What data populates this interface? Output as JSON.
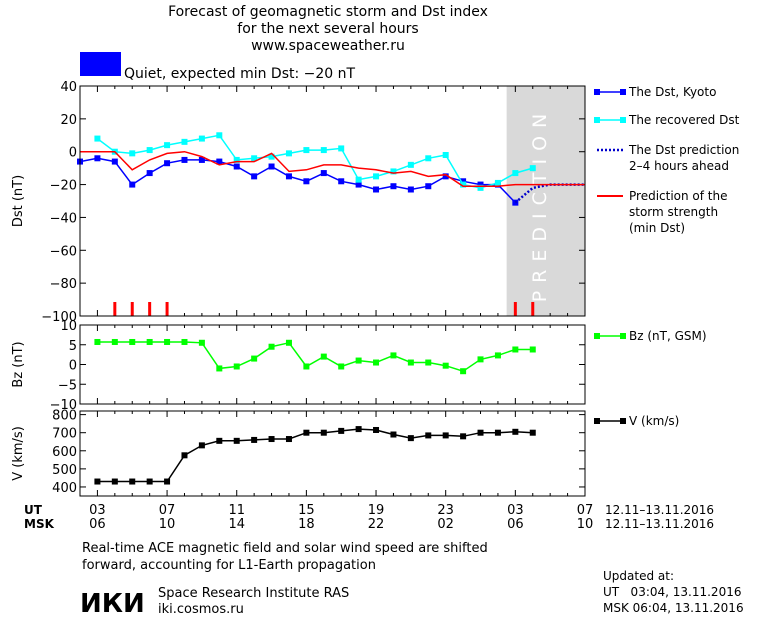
{
  "header": {
    "line1": "Forecast of geomagnetic storm and Dst index",
    "line2": "for the next several hours",
    "line3": "www.spaceweather.ru"
  },
  "status": {
    "color": "#0000ff",
    "text": "Quiet, expected min Dst: −20 nT"
  },
  "x_ticks": {
    "ut": [
      "03",
      "07",
      "11",
      "15",
      "19",
      "23",
      "03",
      "07"
    ],
    "msk": [
      "06",
      "10",
      "14",
      "18",
      "22",
      "02",
      "06",
      "10"
    ],
    "row_ut": "UT",
    "row_msk": "MSK",
    "range_ut": "12.11–13.11.2016",
    "range_msk": "12.11–13.11.2016"
  },
  "prediction_label": "PREDICTION",
  "footer": {
    "note_line1": "Real-time ACE magnetic field and solar wind speed are shifted",
    "note_line2": "forward, accounting for L1-Earth propagation",
    "org_logo": "ИКИ",
    "org_name": "Space Research Institute RAS",
    "org_url": "iki.cosmos.ru",
    "updated_label": "Updated at:",
    "updated_ut": "UT   03:04, 13.11.2016",
    "updated_msk": "MSK 06:04, 13.11.2016"
  },
  "chart_data": [
    {
      "type": "line",
      "ylabel": "Dst (nT)",
      "ylim": [
        -100,
        40
      ],
      "yticks": [
        40,
        20,
        0,
        -20,
        -40,
        -60,
        -80,
        -100
      ],
      "xlim": [
        2,
        31
      ],
      "prediction_region": [
        26.5,
        31
      ],
      "series": [
        {
          "name": "The Dst, Kyoto",
          "color": "#0000ff",
          "marker": "square",
          "x": [
            2,
            3,
            4,
            5,
            6,
            7,
            8,
            9,
            10,
            11,
            12,
            13,
            14,
            15,
            16,
            17,
            18,
            19,
            20,
            21,
            22,
            23,
            24,
            25,
            26,
            27
          ],
          "y": [
            -6,
            -4,
            -6,
            -20,
            -13,
            -7,
            -5,
            -5,
            -6,
            -9,
            -15,
            -9,
            -15,
            -18,
            -13,
            -18,
            -20,
            -23,
            -21,
            -23,
            -21,
            -15,
            -18,
            -20,
            -20,
            -31
          ]
        },
        {
          "name": "The recovered Dst",
          "color": "#00ffff",
          "marker": "square",
          "x": [
            3,
            4,
            5,
            6,
            7,
            8,
            9,
            10,
            11,
            12,
            13,
            14,
            15,
            16,
            17,
            18,
            19,
            20,
            21,
            22,
            23,
            24,
            25,
            26,
            27,
            28
          ],
          "y": [
            8,
            0,
            -1,
            1,
            4,
            6,
            8,
            10,
            -5,
            -4,
            -3,
            -1,
            1,
            1,
            2,
            -17,
            -15,
            -12,
            -8,
            -4,
            -2,
            -20,
            -22,
            -19,
            -13,
            -10
          ]
        },
        {
          "name": "The Dst prediction 2–4 hours ahead",
          "color": "#0000cc",
          "style": "dotted",
          "x": [
            27,
            28,
            29,
            30,
            31
          ],
          "y": [
            -31,
            -22,
            -20,
            -20,
            -20
          ]
        },
        {
          "name": "Prediction of the storm strength (min Dst)",
          "color": "#ff0000",
          "x": [
            2,
            4,
            5,
            6,
            7,
            8,
            9,
            10,
            11,
            12,
            13,
            14,
            15,
            16,
            17,
            18,
            19,
            20,
            21,
            22,
            23,
            24,
            25,
            26,
            27,
            28,
            29,
            30,
            31
          ],
          "y": [
            0,
            0,
            -11,
            -5,
            -1,
            0,
            -3,
            -8,
            -6,
            -6,
            -1,
            -12,
            -11,
            -8,
            -8,
            -10,
            -11,
            -13,
            -12,
            -15,
            -14,
            -21,
            -21,
            -21,
            -20,
            -20,
            -20,
            -20,
            -20
          ]
        }
      ],
      "storm_markers": {
        "color": "#ff0000",
        "x": [
          4,
          5,
          6,
          7,
          27,
          28
        ]
      },
      "legend": [
        {
          "label": "The Dst, Kyoto",
          "color": "#0000ff",
          "style": "marker"
        },
        {
          "label": "The recovered Dst",
          "color": "#00ffff",
          "style": "marker"
        },
        {
          "label": "The Dst prediction\n2–4 hours ahead",
          "color": "#0000cc",
          "style": "dotted"
        },
        {
          "label": "Prediction of the\nstorm strength\n(min Dst)",
          "color": "#ff0000",
          "style": "line"
        }
      ]
    },
    {
      "type": "line",
      "ylabel": "Bz (nT)",
      "ylim": [
        -10,
        10
      ],
      "yticks": [
        10,
        5,
        0,
        -5,
        -10
      ],
      "xlim": [
        2,
        31
      ],
      "series": [
        {
          "name": "Bz (nT, GSM)",
          "color": "#00ff00",
          "marker": "square",
          "x": [
            3,
            4,
            5,
            6,
            7,
            8,
            9,
            10,
            11,
            12,
            13,
            14,
            15,
            16,
            17,
            18,
            19,
            20,
            21,
            22,
            23,
            24,
            25,
            26,
            27,
            28
          ],
          "y": [
            5.7,
            5.7,
            5.7,
            5.7,
            5.7,
            5.7,
            5.5,
            -1,
            -0.5,
            1.5,
            4.5,
            5.5,
            -0.5,
            2,
            -0.5,
            1,
            0.5,
            2.3,
            0.5,
            0.5,
            -0.3,
            -1.7,
            1.3,
            2.3,
            3.8,
            3.8
          ]
        }
      ],
      "legend": [
        {
          "label": "Bz (nT, GSM)",
          "color": "#00ff00",
          "style": "marker"
        }
      ]
    },
    {
      "type": "line",
      "ylabel": "V (km/s)",
      "ylim": [
        350,
        820
      ],
      "yticks": [
        800,
        700,
        600,
        500,
        400
      ],
      "xlim": [
        2,
        31
      ],
      "series": [
        {
          "name": "V (km/s)",
          "color": "#000000",
          "marker": "square",
          "x": [
            3,
            4,
            5,
            6,
            7,
            8,
            9,
            10,
            11,
            12,
            13,
            14,
            15,
            16,
            17,
            18,
            19,
            20,
            21,
            22,
            23,
            24,
            25,
            26,
            27,
            28
          ],
          "y": [
            430,
            430,
            430,
            430,
            430,
            575,
            630,
            655,
            655,
            660,
            665,
            665,
            700,
            700,
            710,
            720,
            715,
            690,
            670,
            685,
            685,
            680,
            700,
            700,
            705,
            700
          ]
        }
      ],
      "legend": [
        {
          "label": "V (km/s)",
          "color": "#000000",
          "style": "marker"
        }
      ]
    }
  ]
}
